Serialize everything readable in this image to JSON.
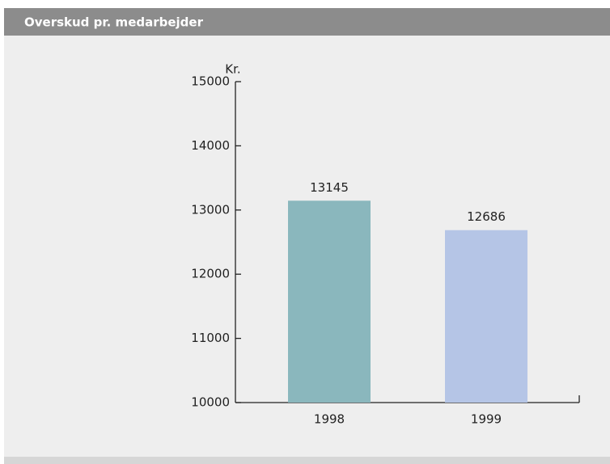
{
  "chart_data": {
    "type": "bar",
    "title": "Overskud pr. medarbejder",
    "y_label": "Kr.",
    "categories": [
      "1998",
      "1999"
    ],
    "values": [
      13145,
      12686
    ],
    "colors": [
      "#8ab7bd",
      "#b5c5e6"
    ],
    "ylim": [
      10000,
      15000
    ],
    "yticks": [
      10000,
      11000,
      12000,
      13000,
      14000,
      15000
    ],
    "grid": false
  }
}
